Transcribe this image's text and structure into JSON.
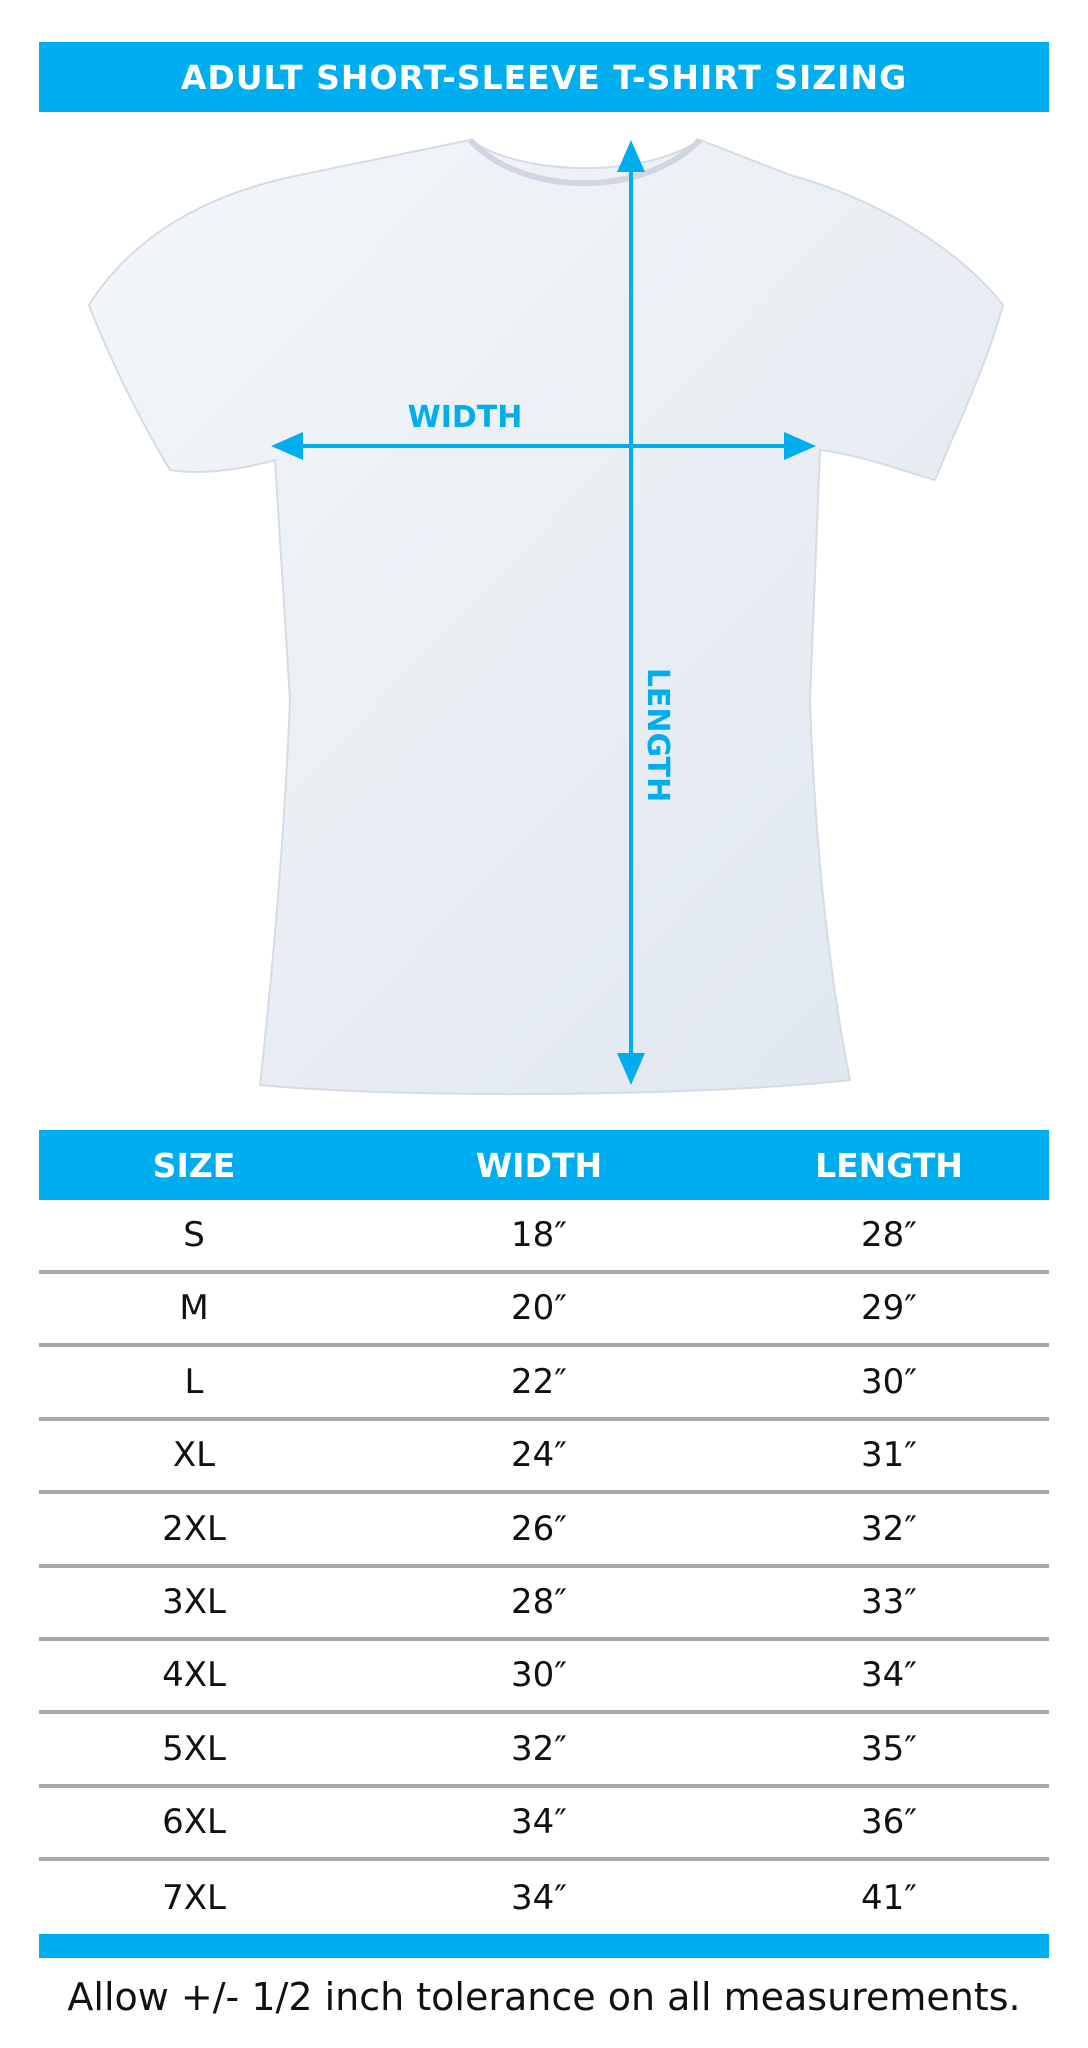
{
  "title": "ADULT SHORT-SLEEVE T-SHIRT SIZING",
  "diagram": {
    "width_label": "WIDTH",
    "length_label": "LENGTH",
    "accent": "#00aeef"
  },
  "table": {
    "headers": [
      "SIZE",
      "WIDTH",
      "LENGTH"
    ],
    "rows": [
      [
        "S",
        "18″",
        "28″"
      ],
      [
        "M",
        "20″",
        "29″"
      ],
      [
        "L",
        "22″",
        "30″"
      ],
      [
        "XL",
        "24″",
        "31″"
      ],
      [
        "2XL",
        "26″",
        "32″"
      ],
      [
        "3XL",
        "28″",
        "33″"
      ],
      [
        "4XL",
        "30″",
        "34″"
      ],
      [
        "5XL",
        "32″",
        "35″"
      ],
      [
        "6XL",
        "34″",
        "36″"
      ],
      [
        "7XL",
        "34″",
        "41″"
      ]
    ]
  },
  "footer": "Allow +/- 1/2 inch tolerance on all measurements."
}
